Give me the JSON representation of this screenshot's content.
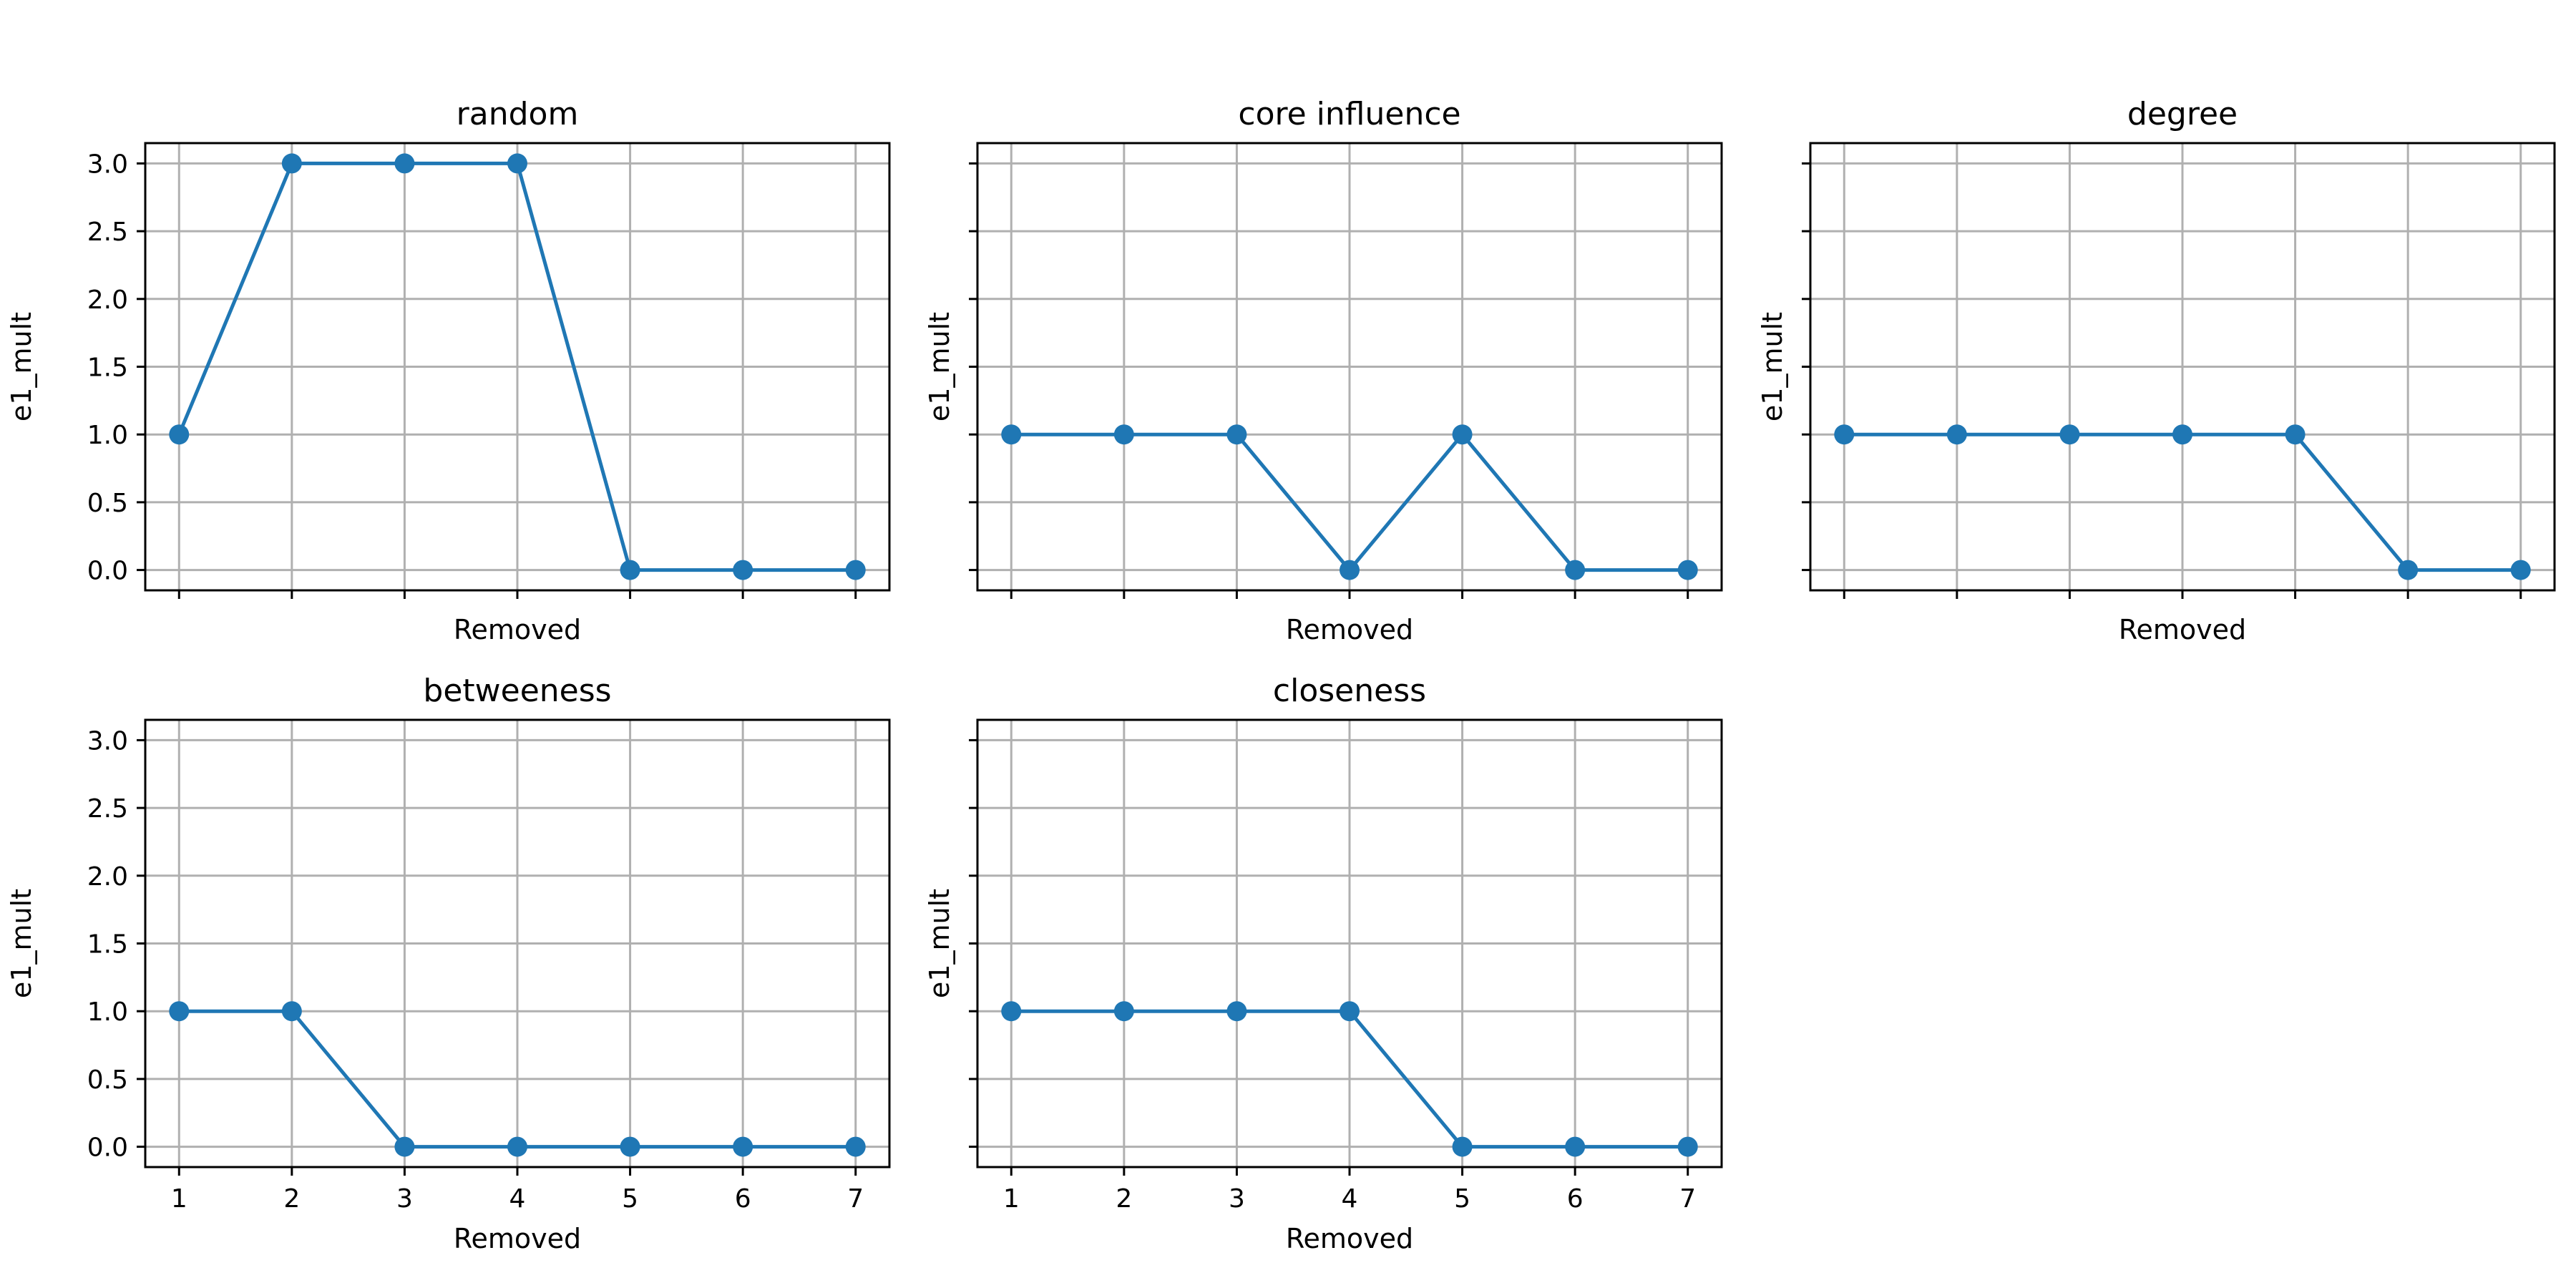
{
  "figure": {
    "background": "#ffffff",
    "line_color": "#1f77b4",
    "grid_color": "#b0b0b0"
  },
  "chart_data": [
    {
      "type": "line",
      "title": "random",
      "xlabel": "Removed",
      "ylabel": "e1_mult",
      "x": [
        1,
        2,
        3,
        4,
        5,
        6,
        7
      ],
      "series": [
        {
          "values": [
            1,
            3,
            3,
            3,
            0,
            0,
            0
          ]
        }
      ],
      "xlim": [
        0.7,
        7.3
      ],
      "ylim": [
        -0.15,
        3.15
      ],
      "yticks": [
        0.0,
        0.5,
        1.0,
        1.5,
        2.0,
        2.5,
        3.0
      ],
      "xticks": [
        1,
        2,
        3,
        4,
        5,
        6,
        7
      ],
      "show_xtick_labels": false,
      "show_ytick_labels": true,
      "grid": true,
      "marker": "circle"
    },
    {
      "type": "line",
      "title": "core influence",
      "xlabel": "Removed",
      "ylabel": "e1_mult",
      "x": [
        1,
        2,
        3,
        4,
        5,
        6,
        7
      ],
      "series": [
        {
          "values": [
            1,
            1,
            1,
            0,
            1,
            0,
            0
          ]
        }
      ],
      "xlim": [
        0.7,
        7.3
      ],
      "ylim": [
        -0.15,
        3.15
      ],
      "yticks": [
        0.0,
        0.5,
        1.0,
        1.5,
        2.0,
        2.5,
        3.0
      ],
      "xticks": [
        1,
        2,
        3,
        4,
        5,
        6,
        7
      ],
      "show_xtick_labels": false,
      "show_ytick_labels": false,
      "grid": true,
      "marker": "circle"
    },
    {
      "type": "line",
      "title": "degree",
      "xlabel": "Removed",
      "ylabel": "e1_mult",
      "x": [
        1,
        2,
        3,
        4,
        5,
        6,
        7
      ],
      "series": [
        {
          "values": [
            1,
            1,
            1,
            1,
            1,
            0,
            0
          ]
        }
      ],
      "xlim": [
        0.7,
        7.3
      ],
      "ylim": [
        -0.15,
        3.15
      ],
      "yticks": [
        0.0,
        0.5,
        1.0,
        1.5,
        2.0,
        2.5,
        3.0
      ],
      "xticks": [
        1,
        2,
        3,
        4,
        5,
        6,
        7
      ],
      "show_xtick_labels": false,
      "show_ytick_labels": false,
      "grid": true,
      "marker": "circle"
    },
    {
      "type": "line",
      "title": "betweeness",
      "xlabel": "Removed",
      "ylabel": "e1_mult",
      "x": [
        1,
        2,
        3,
        4,
        5,
        6,
        7
      ],
      "series": [
        {
          "values": [
            1,
            1,
            0,
            0,
            0,
            0,
            0
          ]
        }
      ],
      "xlim": [
        0.7,
        7.3
      ],
      "ylim": [
        -0.15,
        3.15
      ],
      "yticks": [
        0.0,
        0.5,
        1.0,
        1.5,
        2.0,
        2.5,
        3.0
      ],
      "xticks": [
        1,
        2,
        3,
        4,
        5,
        6,
        7
      ],
      "show_xtick_labels": true,
      "show_ytick_labels": true,
      "grid": true,
      "marker": "circle"
    },
    {
      "type": "line",
      "title": "closeness",
      "xlabel": "Removed",
      "ylabel": "e1_mult",
      "x": [
        1,
        2,
        3,
        4,
        5,
        6,
        7
      ],
      "series": [
        {
          "values": [
            1,
            1,
            1,
            1,
            0,
            0,
            0
          ]
        }
      ],
      "xlim": [
        0.7,
        7.3
      ],
      "ylim": [
        -0.15,
        3.15
      ],
      "yticks": [
        0.0,
        0.5,
        1.0,
        1.5,
        2.0,
        2.5,
        3.0
      ],
      "xticks": [
        1,
        2,
        3,
        4,
        5,
        6,
        7
      ],
      "show_xtick_labels": true,
      "show_ytick_labels": false,
      "grid": true,
      "marker": "circle"
    }
  ]
}
